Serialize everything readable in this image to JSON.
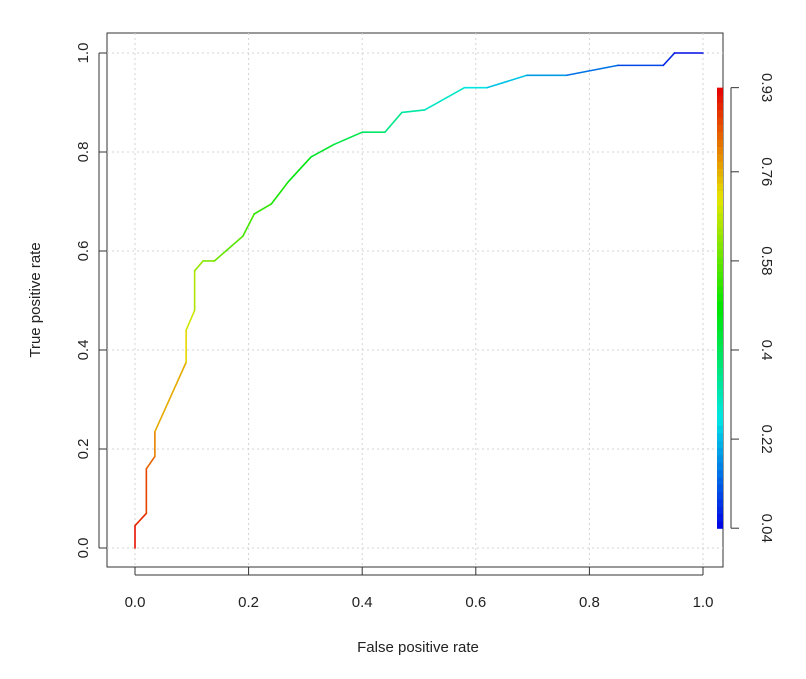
{
  "chart_data": {
    "type": "line",
    "title": "",
    "xlabel": "False positive rate",
    "ylabel": "True positive rate",
    "xlim": [
      0,
      1
    ],
    "ylim": [
      0,
      1
    ],
    "grid": true,
    "x_ticks": [
      "0.0",
      "0.2",
      "0.4",
      "0.6",
      "0.8",
      "1.0"
    ],
    "y_ticks": [
      "0.0",
      "0.2",
      "0.4",
      "0.6",
      "0.8",
      "1.0"
    ],
    "series": [
      {
        "color_by": "cutoff",
        "x": [
          0.0,
          0.0,
          0.02,
          0.02,
          0.035,
          0.035,
          0.09,
          0.09,
          0.105,
          0.105,
          0.12,
          0.14,
          0.16,
          0.19,
          0.21,
          0.24,
          0.27,
          0.31,
          0.35,
          0.4,
          0.44,
          0.47,
          0.51,
          0.58,
          0.62,
          0.69,
          0.76,
          0.85,
          0.93,
          0.95,
          1.0
        ],
        "y": [
          0.0,
          0.045,
          0.07,
          0.16,
          0.185,
          0.235,
          0.375,
          0.44,
          0.48,
          0.56,
          0.58,
          0.58,
          0.6,
          0.63,
          0.675,
          0.695,
          0.74,
          0.79,
          0.815,
          0.84,
          0.84,
          0.88,
          0.885,
          0.93,
          0.93,
          0.955,
          0.955,
          0.975,
          0.975,
          1.0,
          1.0
        ],
        "cutoff": [
          0.93,
          0.9,
          0.88,
          0.85,
          0.82,
          0.79,
          0.74,
          0.7,
          0.67,
          0.64,
          0.62,
          0.6,
          0.58,
          0.56,
          0.54,
          0.52,
          0.49,
          0.46,
          0.43,
          0.4,
          0.37,
          0.34,
          0.31,
          0.28,
          0.25,
          0.21,
          0.17,
          0.13,
          0.09,
          0.06,
          0.04
        ]
      }
    ],
    "colorbar": {
      "min": 0.04,
      "max": 0.93,
      "labels": [
        "0.04",
        "0.22",
        "0.4",
        "0.58",
        "0.76",
        "0.93"
      ],
      "values": [
        0.04,
        0.22,
        0.4,
        0.58,
        0.76,
        0.93
      ],
      "colormap": "rainbow"
    }
  }
}
